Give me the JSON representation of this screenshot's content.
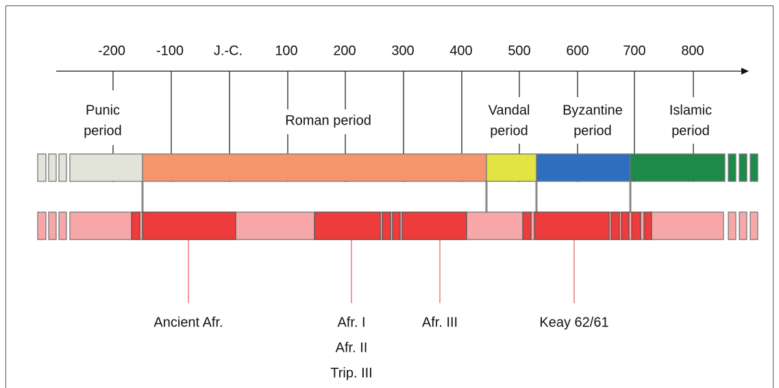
{
  "timeline": {
    "ticks": [
      "-200",
      "-100",
      "J.-C.",
      "100",
      "200",
      "300",
      "400",
      "500",
      "600",
      "700",
      "800"
    ],
    "periods": [
      {
        "lines": [
          "Punic",
          "period"
        ]
      },
      {
        "lines": [
          "Roman period"
        ]
      },
      {
        "lines": [
          "Vandal",
          "period"
        ]
      },
      {
        "lines": [
          "Byzantine",
          "period"
        ]
      },
      {
        "lines": [
          "Islamic",
          "period"
        ]
      }
    ],
    "amphorae": [
      {
        "lines": [
          "Ancient Afr."
        ]
      },
      {
        "lines": [
          "Afr. I",
          "Afr. II",
          "Trip. III"
        ]
      },
      {
        "lines": [
          "Afr. III"
        ]
      },
      {
        "lines": [
          "Keay 62/61"
        ]
      }
    ]
  }
}
